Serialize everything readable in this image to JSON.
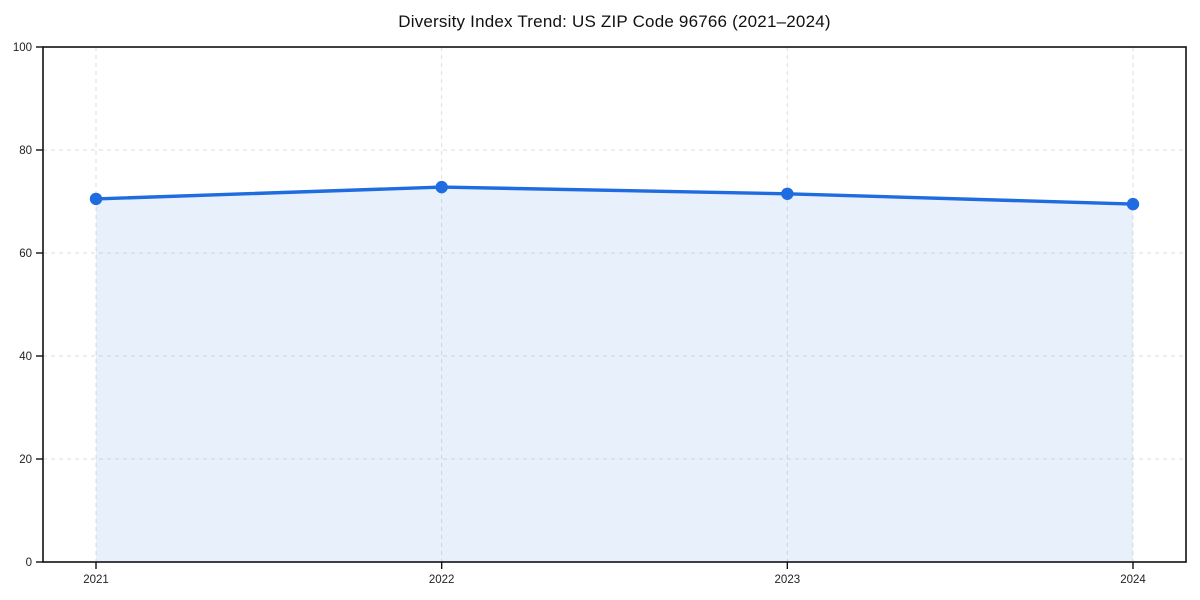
{
  "chart_data": {
    "type": "area",
    "title": "Diversity Index Trend: US ZIP Code 96766 (2021–2024)",
    "x": [
      2021,
      2022,
      2023,
      2024
    ],
    "categories": [
      "2021",
      "2022",
      "2023",
      "2024"
    ],
    "series": [
      {
        "name": "Diversity Index",
        "values": [
          70.5,
          72.8,
          71.5,
          69.5
        ]
      }
    ],
    "xlabel": "",
    "ylabel": "",
    "ylim": [
      0,
      100
    ],
    "yticks": [
      0,
      20,
      40,
      60,
      80,
      100
    ],
    "grid": "dashed, both axes",
    "legend": "none",
    "colors": {
      "line": "#1f6be0",
      "marker": "#1f6be0",
      "fill": "#1f6be0",
      "fill_opacity": 0.1,
      "gridline": "#dedede",
      "spine": "#111111",
      "tick_text": "#222222",
      "background": "#ffffff"
    }
  }
}
